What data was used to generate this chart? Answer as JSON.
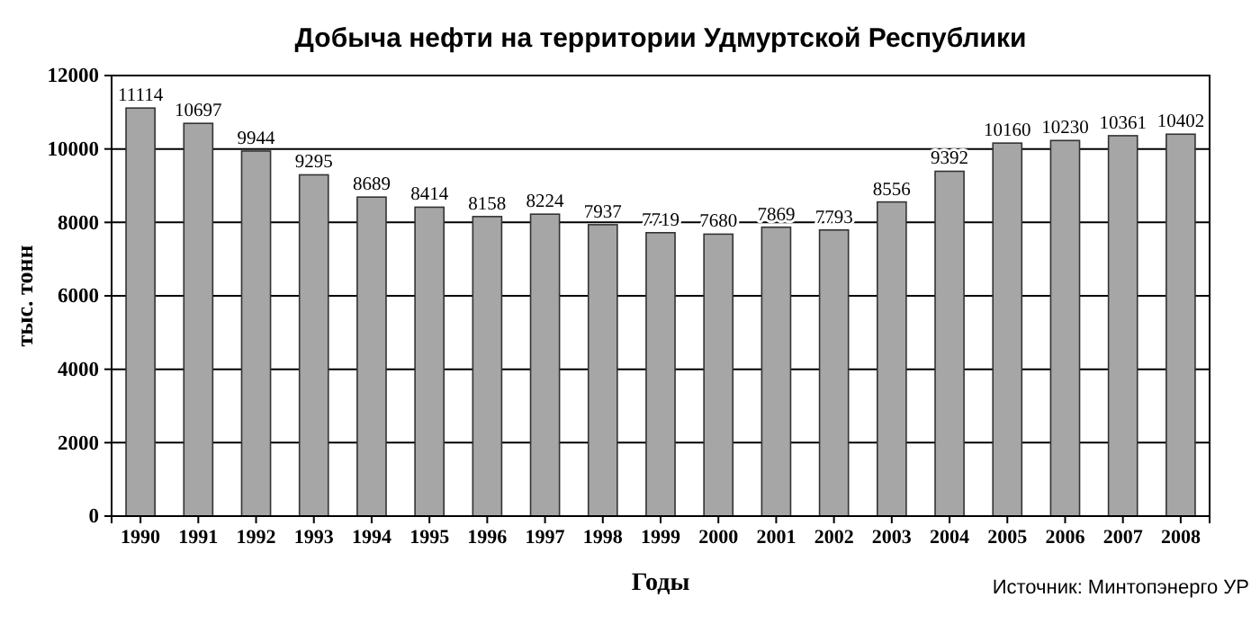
{
  "chart_data": {
    "type": "bar",
    "title": "Добыча нефти на территории Удмуртской Республики",
    "xlabel": "Годы",
    "ylabel": "тыс. тонн",
    "annotations": [
      "Источник: Минтопэнерго УР"
    ],
    "categories": [
      "1990",
      "1991",
      "1992",
      "1993",
      "1994",
      "1995",
      "1996",
      "1997",
      "1998",
      "1999",
      "2000",
      "2001",
      "2002",
      "2003",
      "2004",
      "2005",
      "2006",
      "2007",
      "2008"
    ],
    "values": [
      11114,
      10697,
      9944,
      9295,
      8689,
      8414,
      8158,
      8224,
      7937,
      7719,
      7680,
      7869,
      7793,
      8556,
      9392,
      10160,
      10230,
      10361,
      10402
    ],
    "color": "#a6a6a6",
    "ylim": [
      0,
      12000
    ],
    "yticks": [
      0,
      2000,
      4000,
      6000,
      8000,
      10000,
      12000
    ],
    "grid": "y",
    "data_labels": true
  }
}
